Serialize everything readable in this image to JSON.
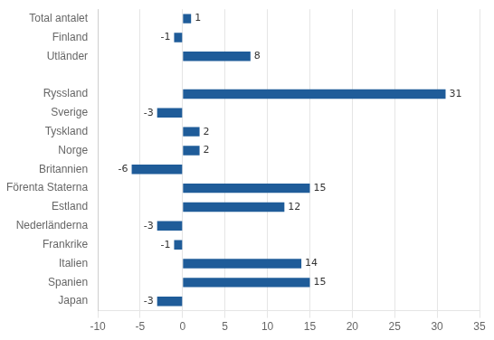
{
  "chart_data": {
    "type": "bar",
    "orientation": "horizontal",
    "categories": [
      "Japan",
      "Spanien",
      "Italien",
      "Frankrike",
      "Nederländerna",
      "Estland",
      "Förenta Staterna",
      "Britannien",
      "Norge",
      "Tyskland",
      "Sverige",
      "Ryssland",
      null,
      "Utländer",
      "Finland",
      "Total antalet"
    ],
    "values": [
      -3,
      15,
      14,
      -1,
      -3,
      12,
      15,
      -6,
      2,
      2,
      -3,
      31,
      null,
      8,
      -1,
      1
    ],
    "color": "#1F5C99",
    "xlim": [
      -10,
      35
    ],
    "xticks": [
      -10,
      -5,
      0,
      5,
      10,
      15,
      20,
      25,
      30,
      35
    ],
    "grid": true,
    "data_labels": true
  }
}
